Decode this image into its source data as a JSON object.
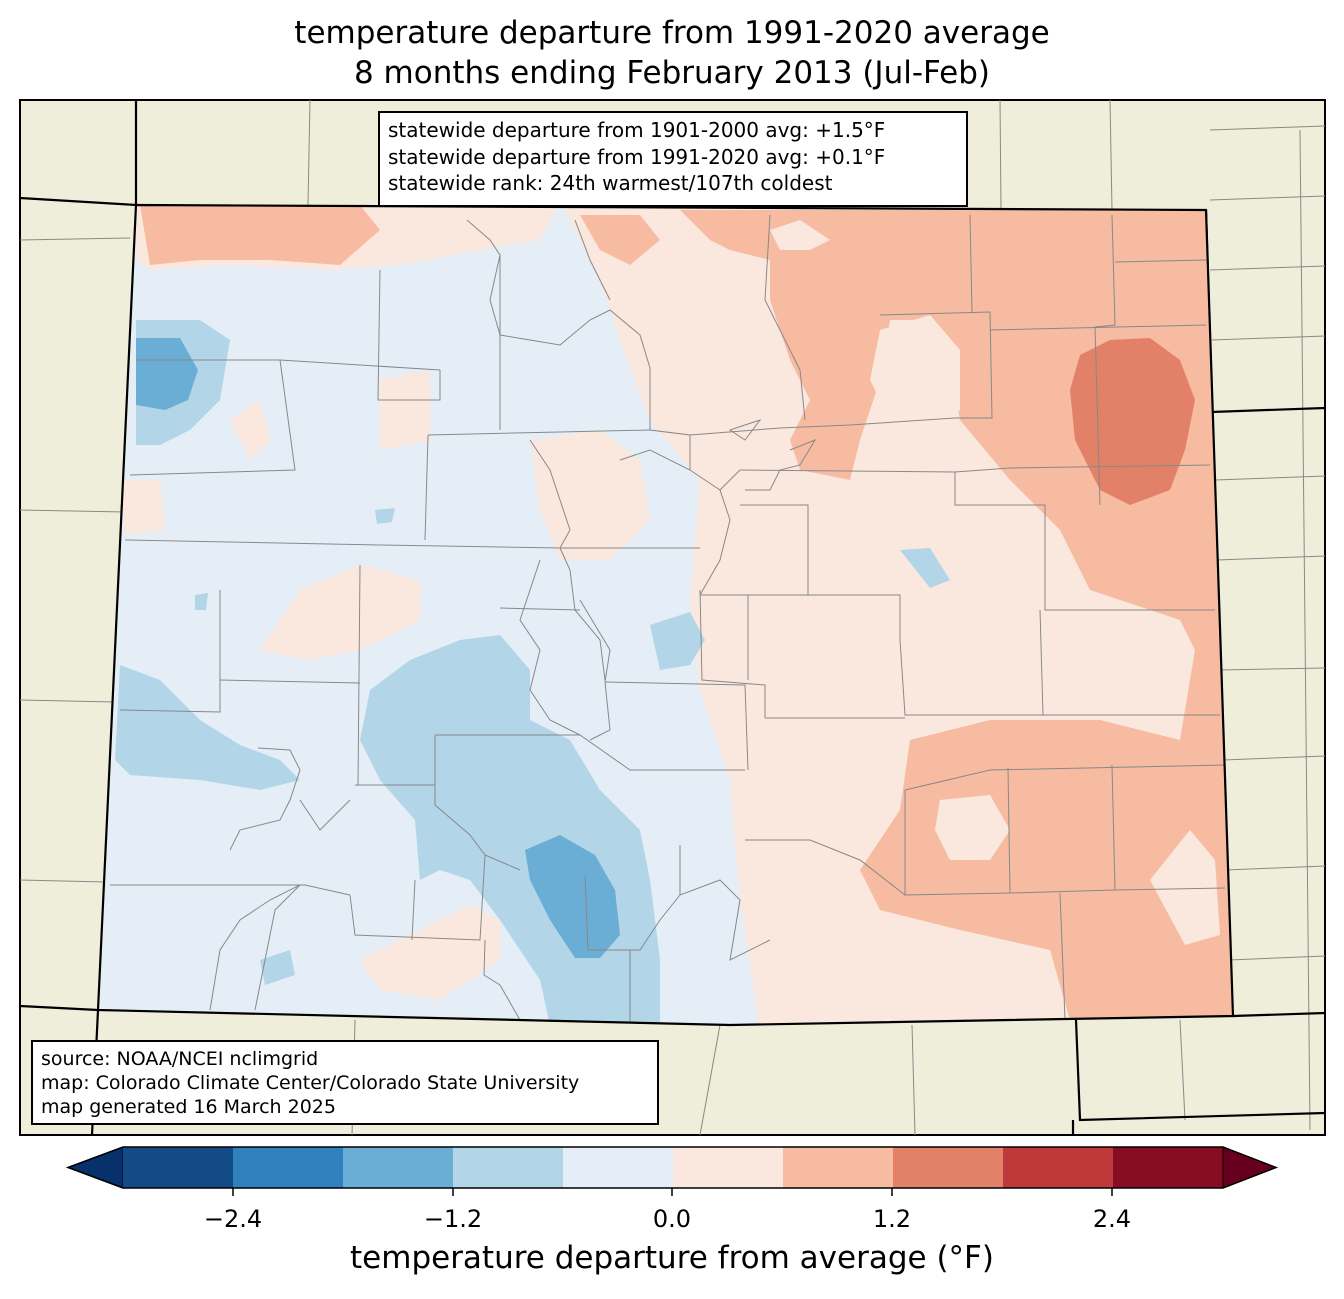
{
  "title_line1": "temperature departure from 1991-2020 average",
  "title_line2": "8 months ending February 2013 (Jul-Feb)",
  "stats": {
    "line1": "statewide departure from 1901-2000 avg: +1.5°F",
    "line2": "statewide departure from 1991-2020 avg: +0.1°F",
    "line3": "statewide rank: 24th warmest/107th coldest"
  },
  "source": {
    "line1": "source: NOAA/NCEI nclimgrid",
    "line2": "map: Colorado Climate Center/Colorado State University",
    "line3": "map generated 16 March 2025"
  },
  "colorbar": {
    "label": "temperature departure from average (°F)",
    "ticks": [
      "−2.4",
      "−1.2",
      "0.0",
      "1.2",
      "2.4"
    ],
    "bin_colors": [
      "#08306b",
      "#134b87",
      "#3080bd",
      "#6aaed6",
      "#b2d5e8",
      "#e5eef6",
      "#fae8df",
      "#f7bba1",
      "#e38068",
      "#c0393a",
      "#860c24",
      "#67001f"
    ]
  },
  "colors": {
    "land_background": "#efeedb",
    "cool_light": "#e5eef6",
    "cool_mid": "#b2d5e8",
    "cool_strong": "#6aaed6",
    "warm_light": "#fae8df",
    "warm_mid": "#f7bba1",
    "warm_strong": "#e38068"
  }
}
